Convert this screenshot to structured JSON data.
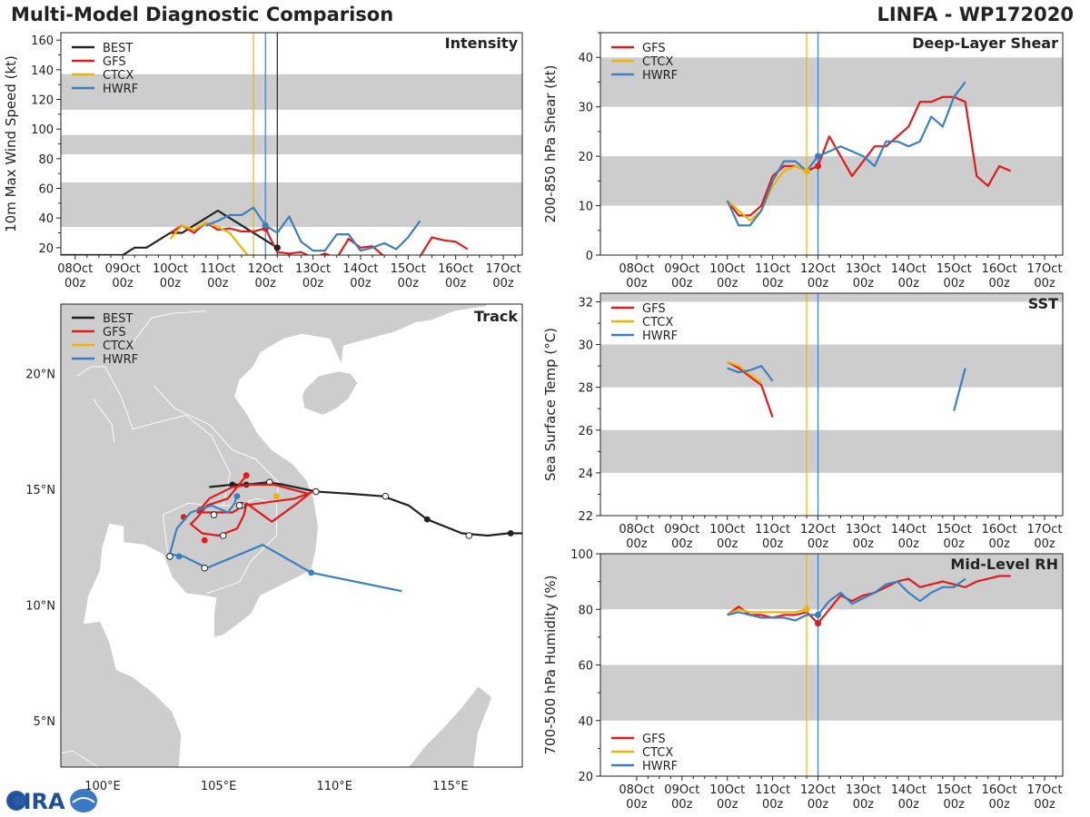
{
  "header": {
    "title": "Multi-Model Diagnostic Comparison",
    "storm": "LINFA - WP172020"
  },
  "logo": {
    "text": "CIRA"
  },
  "colors": {
    "BEST": "#222222",
    "GFS": "#e31a1c",
    "CTCX": "#f0b400",
    "HWRF": "#3a7fc0",
    "band": "#cdcdcd",
    "land": "#cdcdcd",
    "border": "#ffffff"
  },
  "time_axis": {
    "tick_days": [
      8,
      9,
      10,
      11,
      12,
      13,
      14,
      15,
      16,
      17
    ],
    "tick_labels": [
      "08Oct",
      "09Oct",
      "10Oct",
      "11Oct",
      "12Oct",
      "13Oct",
      "14Oct",
      "15Oct",
      "16Oct",
      "17Oct"
    ],
    "tick_sub": "00z"
  },
  "chart_data": [
    {
      "id": "intensity",
      "type": "line",
      "title": "Intensity",
      "ylabel": "10m Max Wind Speed (kt)",
      "xlim": [
        7.7,
        17.4
      ],
      "ylim": [
        15,
        165
      ],
      "yticks": [
        20,
        40,
        60,
        80,
        100,
        120,
        140,
        160
      ],
      "bands": [
        [
          34,
          64
        ],
        [
          83,
          96
        ],
        [
          113,
          137
        ]
      ],
      "vlines": [
        {
          "x": 11.75,
          "color": "CTCX"
        },
        {
          "x": 12.0,
          "color": "HWRF"
        },
        {
          "x": 12.25,
          "color": "BEST"
        }
      ],
      "legend": [
        "BEST",
        "GFS",
        "CTCX",
        "HWRF"
      ],
      "series": [
        {
          "name": "BEST",
          "x": [
            7.7,
            9.0,
            9.25,
            9.5,
            10.0,
            10.25,
            10.5,
            10.75,
            11.0,
            11.25,
            11.5,
            11.75,
            12.0,
            12.25
          ],
          "y": [
            15,
            15,
            20,
            20,
            30,
            30,
            35,
            40,
            45,
            40,
            35,
            30,
            25,
            20
          ]
        },
        {
          "name": "GFS",
          "x": [
            10.0,
            10.25,
            10.5,
            10.75,
            11.0,
            11.25,
            11.5,
            11.75,
            12.0,
            12.25,
            12.5,
            12.75,
            13.0,
            13.25,
            13.5,
            13.75,
            14.0,
            14.25,
            14.5,
            14.75,
            15.0,
            15.25,
            15.5,
            15.75,
            16.0,
            16.25
          ],
          "y": [
            30,
            35,
            30,
            37,
            32,
            33,
            31,
            31,
            33,
            17,
            16,
            17,
            13,
            16,
            13,
            26,
            20,
            21,
            14,
            14,
            12,
            14,
            27,
            25,
            24,
            19
          ]
        },
        {
          "name": "CTCX",
          "x": [
            10.0,
            10.25,
            10.5,
            10.75,
            11.0,
            11.25,
            11.5,
            11.75
          ],
          "y": [
            26,
            35,
            32,
            37,
            34,
            30,
            20,
            10
          ]
        },
        {
          "name": "HWRF",
          "x": [
            10.75,
            11.0,
            11.25,
            11.5,
            11.75,
            12.0,
            12.25,
            12.5,
            12.75,
            13.0,
            13.25,
            13.5,
            13.75,
            14.0,
            14.25,
            14.5,
            14.75,
            15.0,
            15.25
          ],
          "y": [
            35,
            38,
            42,
            42,
            47,
            35,
            30,
            41,
            24,
            18,
            18,
            29,
            29,
            18,
            20,
            23,
            19,
            27,
            38
          ]
        }
      ],
      "markers": [
        {
          "series": "GFS",
          "x": 12.0,
          "y": 33
        },
        {
          "series": "HWRF",
          "x": 12.0,
          "y": 35
        },
        {
          "series": "BEST",
          "x": 12.25,
          "y": 20
        }
      ]
    },
    {
      "id": "shear",
      "type": "line",
      "title": "Deep-Layer Shear",
      "ylabel": "200-850 hPa Shear (kt)",
      "xlim": [
        7.2,
        17.4
      ],
      "ylim": [
        0,
        45
      ],
      "yticks": [
        0,
        10,
        20,
        30,
        40
      ],
      "bands": [
        [
          10,
          20
        ],
        [
          30,
          40
        ]
      ],
      "vlines": [
        {
          "x": 11.75,
          "color": "CTCX"
        },
        {
          "x": 12.0,
          "color": "HWRF"
        }
      ],
      "legend": [
        "GFS",
        "CTCX",
        "HWRF"
      ],
      "series": [
        {
          "name": "GFS",
          "x": [
            10.0,
            10.25,
            10.5,
            10.75,
            11.0,
            11.25,
            11.5,
            11.75,
            12.0,
            12.25,
            12.5,
            12.75,
            13.0,
            13.25,
            13.5,
            13.75,
            14.0,
            14.25,
            14.5,
            14.75,
            15.0,
            15.25,
            15.5,
            15.75,
            16.0,
            16.25
          ],
          "y": [
            11,
            8,
            8,
            10,
            16,
            18,
            18,
            17,
            18,
            24,
            20,
            16,
            19,
            22,
            22,
            24,
            26,
            31,
            31,
            32,
            32,
            31,
            16,
            14,
            18,
            17
          ]
        },
        {
          "name": "CTCX",
          "x": [
            10.0,
            10.25,
            10.5,
            10.75,
            11.0,
            11.25,
            11.5,
            11.75
          ],
          "y": [
            11,
            9,
            7,
            9,
            14,
            17,
            18,
            17
          ]
        },
        {
          "name": "HWRF",
          "x": [
            10.0,
            10.25,
            10.5,
            10.75,
            11.0,
            11.25,
            11.5,
            11.75,
            12.0,
            12.25,
            12.5,
            12.75,
            13.0,
            13.25,
            13.5,
            13.75,
            14.0,
            14.25,
            14.5,
            14.75,
            15.0,
            15.25
          ],
          "y": [
            11,
            6,
            6,
            9,
            15,
            19,
            19,
            17,
            20,
            21,
            22,
            21,
            20,
            18,
            23,
            23,
            22,
            23,
            28,
            26,
            32,
            35
          ]
        }
      ],
      "markers": [
        {
          "series": "CTCX",
          "x": 11.75,
          "y": 17
        },
        {
          "series": "GFS",
          "x": 12.0,
          "y": 18
        },
        {
          "series": "HWRF",
          "x": 12.0,
          "y": 20
        }
      ]
    },
    {
      "id": "sst",
      "type": "line",
      "title": "SST",
      "ylabel": "Sea Surface Temp (°C)",
      "xlim": [
        7.2,
        17.4
      ],
      "ylim": [
        22,
        32.4
      ],
      "yticks": [
        22,
        24,
        26,
        28,
        30,
        32
      ],
      "bands": [
        [
          24,
          26
        ],
        [
          28,
          30
        ],
        [
          32,
          32.4
        ]
      ],
      "vlines": [
        {
          "x": 11.75,
          "color": "CTCX"
        },
        {
          "x": 12.0,
          "color": "HWRF"
        }
      ],
      "legend": [
        "GFS",
        "CTCX",
        "HWRF"
      ],
      "series": [
        {
          "name": "GFS",
          "x": [
            10.0,
            10.25,
            10.5,
            10.75,
            11.0
          ],
          "y": [
            29.2,
            28.9,
            28.5,
            28.1,
            26.6
          ]
        },
        {
          "name": "CTCX",
          "x": [
            10.0,
            10.25,
            10.5,
            10.75
          ],
          "y": [
            29.2,
            29.0,
            28.6,
            28.2
          ]
        },
        {
          "name": "HWRF",
          "x": [
            10.0,
            10.25,
            10.5,
            10.75,
            11.0
          ],
          "y": [
            28.9,
            28.7,
            28.8,
            29.0,
            28.3
          ]
        },
        {
          "name": "HWRF",
          "x": [
            15.0,
            15.25
          ],
          "y": [
            26.9,
            28.9
          ]
        }
      ],
      "markers": []
    },
    {
      "id": "rh",
      "type": "line",
      "title": "Mid-Level RH",
      "ylabel": "700-500 hPa Humidity (%)",
      "xlim": [
        7.2,
        17.4
      ],
      "ylim": [
        20,
        100
      ],
      "yticks": [
        20,
        40,
        60,
        80,
        100
      ],
      "bands": [
        [
          40,
          60
        ],
        [
          80,
          100
        ]
      ],
      "vlines": [
        {
          "x": 11.75,
          "color": "CTCX"
        },
        {
          "x": 12.0,
          "color": "HWRF"
        }
      ],
      "legend": [
        "GFS",
        "CTCX",
        "HWRF"
      ],
      "legend_pos": "bottom-left",
      "series": [
        {
          "name": "GFS",
          "x": [
            10.0,
            10.25,
            10.5,
            10.75,
            11.0,
            11.25,
            11.5,
            11.75,
            12.0,
            12.25,
            12.5,
            12.75,
            13.0,
            13.25,
            13.5,
            13.75,
            14.0,
            14.25,
            14.5,
            14.75,
            15.0,
            15.25,
            15.5,
            15.75,
            16.0,
            16.25
          ],
          "y": [
            78,
            81,
            78,
            78,
            77,
            78,
            78,
            79,
            75,
            80,
            85,
            83,
            85,
            86,
            88,
            90,
            91,
            88,
            89,
            90,
            89,
            88,
            90,
            91,
            92,
            92
          ]
        },
        {
          "name": "CTCX",
          "x": [
            10.0,
            10.25,
            10.5,
            10.75,
            11.0,
            11.25,
            11.5,
            11.75
          ],
          "y": [
            78,
            80,
            79,
            79,
            79,
            79,
            79,
            80
          ]
        },
        {
          "name": "HWRF",
          "x": [
            10.0,
            10.25,
            10.5,
            10.75,
            11.0,
            11.25,
            11.5,
            11.75,
            12.0,
            12.25,
            12.5,
            12.75,
            13.0,
            13.25,
            13.5,
            13.75,
            14.0,
            14.25,
            14.5,
            14.75,
            15.0,
            15.25
          ],
          "y": [
            78,
            79,
            78,
            77,
            77,
            77,
            76,
            78,
            78,
            83,
            86,
            82,
            84,
            86,
            89,
            90,
            86,
            83,
            86,
            88,
            88,
            91
          ]
        }
      ],
      "markers": [
        {
          "series": "CTCX",
          "x": 11.75,
          "y": 80
        },
        {
          "series": "GFS",
          "x": 12.0,
          "y": 75
        },
        {
          "series": "HWRF",
          "x": 12.0,
          "y": 78
        }
      ]
    },
    {
      "id": "track",
      "type": "map",
      "title": "Track",
      "lon_range": [
        98.2,
        118.1
      ],
      "lat_range": [
        3.0,
        23.0
      ],
      "lon_ticks": [
        100,
        105,
        110,
        115
      ],
      "lon_tick_labels": [
        "100°E",
        "105°E",
        "110°E",
        "115°E"
      ],
      "lat_ticks": [
        5,
        10,
        15,
        20
      ],
      "lat_tick_labels": [
        "5°N",
        "10°N",
        "15°N",
        "20°N"
      ],
      "legend": [
        "BEST",
        "GFS",
        "CTCX",
        "HWRF"
      ],
      "tracks": [
        {
          "name": "BEST",
          "lon": [
            118.1,
            117.5,
            116.6,
            115.5,
            114.0,
            113.2,
            112.1,
            110.8,
            109.2,
            107.8,
            107.1,
            106.2,
            105.6,
            104.6
          ],
          "lat": [
            13.1,
            13.1,
            13.0,
            13.1,
            13.7,
            14.3,
            14.7,
            14.8,
            14.9,
            15.2,
            15.3,
            15.2,
            15.2,
            15.1
          ],
          "open": [
            [
              115.8,
              13.0
            ],
            [
              112.2,
              14.7
            ],
            [
              109.2,
              14.9
            ],
            [
              107.2,
              15.3
            ]
          ],
          "filled": [
            [
              117.6,
              13.1
            ],
            [
              114.0,
              13.7
            ],
            [
              106.2,
              15.2
            ],
            [
              105.6,
              15.2
            ]
          ]
        },
        {
          "name": "GFS",
          "lon": [
            106.2,
            105.4,
            104.5,
            104.1,
            103.8,
            104.3,
            105.0,
            105.8,
            106.1,
            106.2,
            107.3,
            108.4,
            108.9,
            107.4,
            106.4,
            105.6,
            104.6,
            104.1,
            105.6,
            106.1,
            108.3,
            109.1
          ],
          "lat": [
            15.6,
            14.6,
            14.3,
            13.8,
            13.5,
            13.1,
            13.0,
            13.3,
            13.9,
            14.4,
            13.6,
            14.4,
            14.8,
            15.2,
            15.2,
            15.1,
            14.6,
            14.0,
            14.0,
            14.3,
            14.6,
            14.9
          ],
          "open": [
            [
              105.2,
              13.0
            ],
            [
              104.8,
              13.9
            ],
            [
              106.0,
              14.3
            ]
          ],
          "filled": [
            [
              106.2,
              15.6
            ],
            [
              104.4,
              12.8
            ],
            [
              104.2,
              14.1
            ],
            [
              103.5,
              13.8
            ]
          ]
        },
        {
          "name": "CTCX",
          "lon": [
            107.5
          ],
          "lat": [
            14.7
          ],
          "open": [],
          "filled": [
            [
              107.5,
              14.7
            ]
          ]
        },
        {
          "name": "HWRF",
          "lon": [
            112.9,
            109.0,
            106.9,
            104.5,
            103.5,
            102.9,
            103.2,
            103.8,
            104.7,
            105.4,
            105.7,
            105.8
          ],
          "lat": [
            10.6,
            11.4,
            12.6,
            11.6,
            12.1,
            12.2,
            13.3,
            14.0,
            14.3,
            14.0,
            14.4,
            14.8
          ],
          "open": [
            [
              102.9,
              12.1
            ],
            [
              104.4,
              11.6
            ],
            [
              105.9,
              14.3
            ]
          ],
          "filled": [
            [
              109.0,
              11.4
            ],
            [
              103.3,
              12.1
            ],
            [
              105.8,
              14.7
            ]
          ]
        }
      ]
    }
  ]
}
